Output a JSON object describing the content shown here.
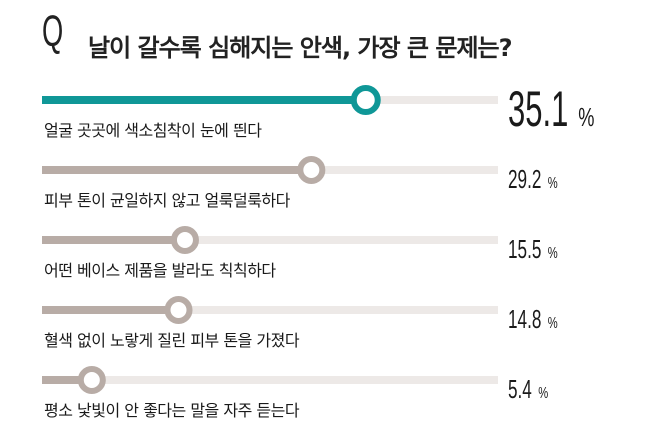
{
  "header": {
    "q_mark": "Q",
    "question": "날이 갈수록 심해지는 안색, 가장 큰 문제는?"
  },
  "colors": {
    "highlight": "#0f9797",
    "muted": "#b8aca6",
    "track": "#ede9e7",
    "knob_highlight_ring": "#0f9797",
    "knob_muted_ring": "#b8aca6"
  },
  "chart_data": {
    "type": "bar",
    "orientation": "horizontal",
    "categories": [
      "얼굴 곳곳에 색소침착이 눈에 띈다",
      "피부 톤이 균일하지 않고 얼룩덜룩하다",
      "어떤 베이스 제품을 발라도 칙칙하다",
      "혈색 없이 노랗게 질린 피부 톤을 가졌다",
      "평소 낯빛이 안 좋다는 말을 자주 듣는다"
    ],
    "values": [
      35.1,
      29.2,
      15.5,
      14.8,
      5.4
    ],
    "value_labels": [
      "35.1",
      "29.2",
      "15.5",
      "14.8",
      "5.4"
    ],
    "unit": "%",
    "xlim": [
      0,
      44
    ],
    "highlight_index": 0,
    "grid": false
  }
}
